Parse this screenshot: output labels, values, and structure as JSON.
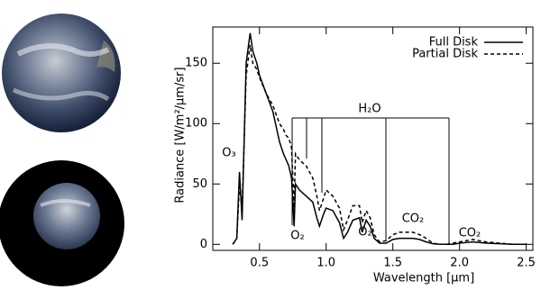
{
  "chart_data": {
    "type": "line",
    "x_label": "Wavelength [μm]",
    "y_label": "Radiance [W/m²/μm/sr]",
    "x": [
      0.3,
      0.33,
      0.35,
      0.37,
      0.4,
      0.43,
      0.45,
      0.48,
      0.5,
      0.55,
      0.6,
      0.65,
      0.68,
      0.7,
      0.72,
      0.74,
      0.76,
      0.77,
      0.8,
      0.85,
      0.9,
      0.93,
      0.95,
      0.98,
      1.0,
      1.05,
      1.1,
      1.13,
      1.16,
      1.2,
      1.25,
      1.27,
      1.3,
      1.33,
      1.36,
      1.4,
      1.45,
      1.5,
      1.55,
      1.6,
      1.65,
      1.7,
      1.75,
      1.8,
      1.85,
      1.9,
      1.95,
      2.0,
      2.05,
      2.1,
      2.15,
      2.2,
      2.3,
      2.4,
      2.5
    ],
    "series": [
      {
        "name": "Full Disk",
        "color": "#000000",
        "dash": false,
        "values": [
          0,
          5,
          60,
          20,
          150,
          175,
          160,
          150,
          140,
          125,
          110,
          85,
          75,
          70,
          65,
          55,
          15,
          50,
          45,
          40,
          35,
          22,
          15,
          25,
          30,
          28,
          18,
          5,
          10,
          20,
          22,
          10,
          20,
          15,
          5,
          1,
          1,
          4,
          5,
          5,
          5,
          4,
          2,
          0.5,
          0,
          0,
          0,
          1,
          1.5,
          2,
          1.5,
          1,
          0.5,
          0,
          0
        ]
      },
      {
        "name": "Partial Disk",
        "color": "#000000",
        "dash": true,
        "values": [
          0,
          5,
          50,
          30,
          140,
          165,
          150,
          145,
          138,
          125,
          115,
          100,
          95,
          90,
          88,
          80,
          30,
          75,
          70,
          65,
          55,
          40,
          28,
          38,
          45,
          40,
          30,
          12,
          20,
          32,
          32,
          18,
          28,
          22,
          8,
          2,
          3,
          8,
          10,
          10,
          10,
          8,
          5,
          1,
          0,
          0,
          1,
          2,
          3,
          4,
          3,
          2,
          1,
          0,
          0
        ]
      }
    ],
    "xlim": [
      0.15,
      2.55
    ],
    "ylim": [
      -5,
      180
    ],
    "xticks": [
      0.5,
      {
        "value": 1.0,
        "label": "1.0"
      },
      1.5,
      {
        "value": 2.0,
        "label": "2.0"
      },
      2.5
    ],
    "yticks": [
      0,
      50,
      100,
      150
    ],
    "legend": "upper right",
    "annotations": [
      "O₃",
      "H₂O",
      "O₂",
      "O₂",
      "CO₂",
      "CO₂"
    ]
  }
}
